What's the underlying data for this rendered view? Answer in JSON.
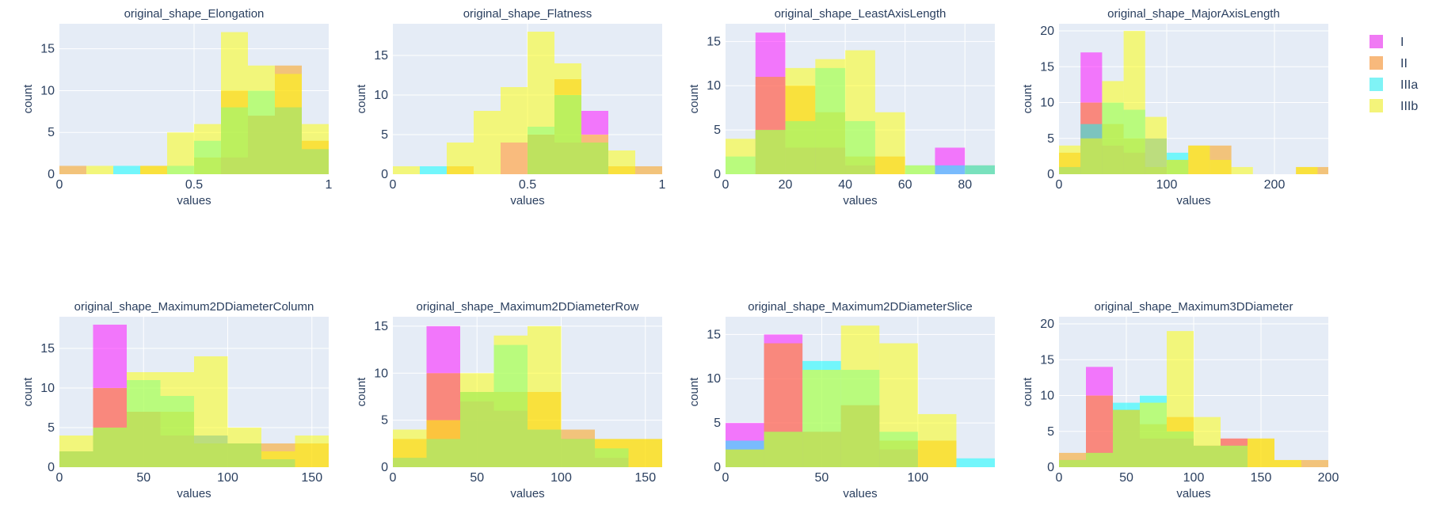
{
  "chart_data": {
    "type": "histogram",
    "barmode": "overlay",
    "legend": {
      "placement": "top-right",
      "entries": [
        {
          "name": "I",
          "color": "#f07af4"
        },
        {
          "name": "II",
          "color": "#f8b97c"
        },
        {
          "name": "IIIa",
          "color": "#7ff3f6"
        },
        {
          "name": "IIIb",
          "color": "#f4f47a"
        }
      ]
    },
    "colors": {
      "plot_bg": "#e5ecf6",
      "grid": "#ffffff",
      "text": "#2a3f5f",
      "I": "#ff00ff",
      "II": "#ff9900",
      "IIIa": "#00ffff",
      "IIIb": "#ffff00"
    },
    "opacity": 0.5,
    "panels": [
      {
        "title": "original_shape_Elongation",
        "xlabel": "values",
        "ylabel": "count",
        "xlim": [
          0,
          1
        ],
        "ylim": [
          0,
          18
        ],
        "xticks": [
          0,
          0.5,
          1
        ],
        "xtick_labels": [
          "0",
          "0.5",
          "1"
        ],
        "yticks": [
          0,
          5,
          10,
          15
        ],
        "bin_start": 0,
        "bin_size": 0.1,
        "series": [
          {
            "name": "I",
            "values": [
              0,
              0,
              0,
              0,
              0,
              0,
              2,
              7,
              8,
              3
            ]
          },
          {
            "name": "II",
            "values": [
              1,
              0,
              0,
              1,
              0,
              2,
              10,
              7,
              13,
              4
            ]
          },
          {
            "name": "IIIa",
            "values": [
              0,
              0,
              1,
              0,
              1,
              4,
              8,
              10,
              8,
              3
            ]
          },
          {
            "name": "IIIb",
            "values": [
              0,
              1,
              0,
              1,
              5,
              6,
              17,
              13,
              12,
              6
            ]
          }
        ]
      },
      {
        "title": "original_shape_Flatness",
        "xlabel": "values",
        "ylabel": "count",
        "xlim": [
          0,
          1
        ],
        "ylim": [
          0,
          19
        ],
        "xticks": [
          0,
          0.5,
          1
        ],
        "xtick_labels": [
          "0",
          "0.5",
          "1"
        ],
        "yticks": [
          0,
          5,
          10,
          15
        ],
        "bin_start": 0,
        "bin_size": 0.1,
        "series": [
          {
            "name": "I",
            "values": [
              0,
              0,
              0,
              0,
              4,
              5,
              4,
              8,
              0,
              0
            ]
          },
          {
            "name": "II",
            "values": [
              0,
              0,
              1,
              0,
              0,
              5,
              12,
              4,
              1,
              1
            ]
          },
          {
            "name": "IIIa",
            "values": [
              0,
              1,
              0,
              0,
              0,
              6,
              10,
              4,
              0,
              0
            ]
          },
          {
            "name": "IIIb",
            "values": [
              1,
              0,
              4,
              8,
              11,
              18,
              14,
              5,
              3,
              0
            ]
          }
        ]
      },
      {
        "title": "original_shape_LeastAxisLength",
        "xlabel": "values",
        "ylabel": "count",
        "xlim": [
          0,
          90
        ],
        "ylim": [
          0,
          17
        ],
        "xticks": [
          0,
          20,
          40,
          60,
          80
        ],
        "xtick_labels": [
          "0",
          "20",
          "40",
          "60",
          "80"
        ],
        "yticks": [
          0,
          5,
          10,
          15
        ],
        "bin_start": 0,
        "bin_size": 10,
        "series": [
          {
            "name": "I",
            "values": [
              0,
              16,
              3,
              3,
              1,
              0,
              0,
              3,
              0
            ]
          },
          {
            "name": "II",
            "values": [
              0,
              11,
              10,
              7,
              2,
              2,
              0,
              0,
              1
            ]
          },
          {
            "name": "IIIa",
            "values": [
              2,
              5,
              6,
              12,
              6,
              0,
              1,
              1,
              1
            ]
          },
          {
            "name": "IIIb",
            "values": [
              4,
              5,
              12,
              13,
              14,
              7,
              1,
              0,
              0
            ]
          }
        ]
      },
      {
        "title": "original_shape_MajorAxisLength",
        "xlabel": "values",
        "ylabel": "count",
        "xlim": [
          0,
          250
        ],
        "ylim": [
          0,
          21
        ],
        "xticks": [
          0,
          100,
          200
        ],
        "xtick_labels": [
          "0",
          "100",
          "200"
        ],
        "yticks": [
          0,
          5,
          10,
          15,
          20
        ],
        "bin_start": 0,
        "bin_size": 20,
        "series": [
          {
            "name": "I",
            "values": [
              1,
              17,
              4,
              3,
              5,
              0,
              0,
              0,
              0,
              0,
              0,
              0,
              0
            ]
          },
          {
            "name": "II",
            "values": [
              3,
              10,
              7,
              5,
              1,
              2,
              4,
              4,
              0,
              0,
              0,
              1,
              1
            ]
          },
          {
            "name": "IIIa",
            "values": [
              1,
              7,
              10,
              9,
              5,
              3,
              0,
              0,
              0,
              0,
              0,
              0,
              0
            ]
          },
          {
            "name": "IIIb",
            "values": [
              4,
              5,
              13,
              20,
              8,
              2,
              4,
              2,
              1,
              0,
              0,
              1,
              0
            ]
          }
        ]
      },
      {
        "title": "original_shape_Maximum2DDiameterColumn",
        "xlabel": "values",
        "ylabel": "count",
        "xlim": [
          0,
          160
        ],
        "ylim": [
          0,
          19
        ],
        "xticks": [
          0,
          50,
          100,
          150
        ],
        "xtick_labels": [
          "0",
          "50",
          "100",
          "150"
        ],
        "yticks": [
          0,
          5,
          10,
          15
        ],
        "bin_start": 0,
        "bin_size": 20,
        "series": [
          {
            "name": "I",
            "values": [
              2,
              18,
              7,
              4,
              4,
              3,
              1,
              0
            ]
          },
          {
            "name": "II",
            "values": [
              2,
              10,
              7,
              7,
              3,
              3,
              3,
              3
            ]
          },
          {
            "name": "IIIa",
            "values": [
              2,
              5,
              11,
              9,
              4,
              3,
              1,
              0
            ]
          },
          {
            "name": "IIIb",
            "values": [
              4,
              5,
              12,
              12,
              14,
              5,
              2,
              4
            ]
          }
        ]
      },
      {
        "title": "original_shape_Maximum2DDiameterRow",
        "xlabel": "values",
        "ylabel": "count",
        "xlim": [
          0,
          160
        ],
        "ylim": [
          0,
          16
        ],
        "xticks": [
          0,
          50,
          100,
          150
        ],
        "xtick_labels": [
          "0",
          "50",
          "100",
          "150"
        ],
        "yticks": [
          0,
          5,
          10,
          15
        ],
        "bin_start": 0,
        "bin_size": 20,
        "series": [
          {
            "name": "I",
            "values": [
              1,
              15,
              7,
              6,
              4,
              3,
              1,
              0
            ]
          },
          {
            "name": "II",
            "values": [
              3,
              10,
              8,
              8,
              8,
              4,
              3,
              3
            ]
          },
          {
            "name": "IIIa",
            "values": [
              1,
              3,
              8,
              13,
              4,
              3,
              2,
              0
            ]
          },
          {
            "name": "IIIb",
            "values": [
              4,
              5,
              10,
              14,
              15,
              3,
              3,
              3
            ]
          }
        ]
      },
      {
        "title": "original_shape_Maximum2DDiameterSlice",
        "xlabel": "values",
        "ylabel": "count",
        "xlim": [
          0,
          140
        ],
        "ylim": [
          0,
          17
        ],
        "xticks": [
          0,
          50,
          100
        ],
        "xtick_labels": [
          "0",
          "50",
          "100"
        ],
        "yticks": [
          0,
          5,
          10,
          15
        ],
        "bin_start": 0,
        "bin_size": 20,
        "series": [
          {
            "name": "I",
            "values": [
              5,
              15,
              4,
              7,
              2,
              0,
              0
            ]
          },
          {
            "name": "II",
            "values": [
              2,
              14,
              4,
              7,
              3,
              3,
              0
            ]
          },
          {
            "name": "IIIa",
            "values": [
              3,
              4,
              12,
              11,
              4,
              0,
              1
            ]
          },
          {
            "name": "IIIb",
            "values": [
              2,
              4,
              11,
              16,
              14,
              6,
              0
            ]
          }
        ]
      },
      {
        "title": "original_shape_Maximum3DDiameter",
        "xlabel": "values",
        "ylabel": "count",
        "xlim": [
          0,
          200
        ],
        "ylim": [
          0,
          21
        ],
        "xticks": [
          0,
          50,
          100,
          150,
          200
        ],
        "xtick_labels": [
          "0",
          "50",
          "100",
          "150",
          "200"
        ],
        "yticks": [
          0,
          5,
          10,
          15,
          20
        ],
        "bin_start": 0,
        "bin_size": 20,
        "series": [
          {
            "name": "I",
            "values": [
              1,
              14,
              8,
              4,
              4,
              3,
              4,
              0,
              0,
              0
            ]
          },
          {
            "name": "II",
            "values": [
              2,
              10,
              8,
              6,
              7,
              3,
              4,
              4,
              1,
              1
            ]
          },
          {
            "name": "IIIa",
            "values": [
              1,
              2,
              9,
              10,
              5,
              3,
              3,
              0,
              0,
              0
            ]
          },
          {
            "name": "IIIb",
            "values": [
              1,
              2,
              8,
              9,
              19,
              7,
              3,
              4,
              1,
              0
            ]
          }
        ]
      }
    ]
  }
}
